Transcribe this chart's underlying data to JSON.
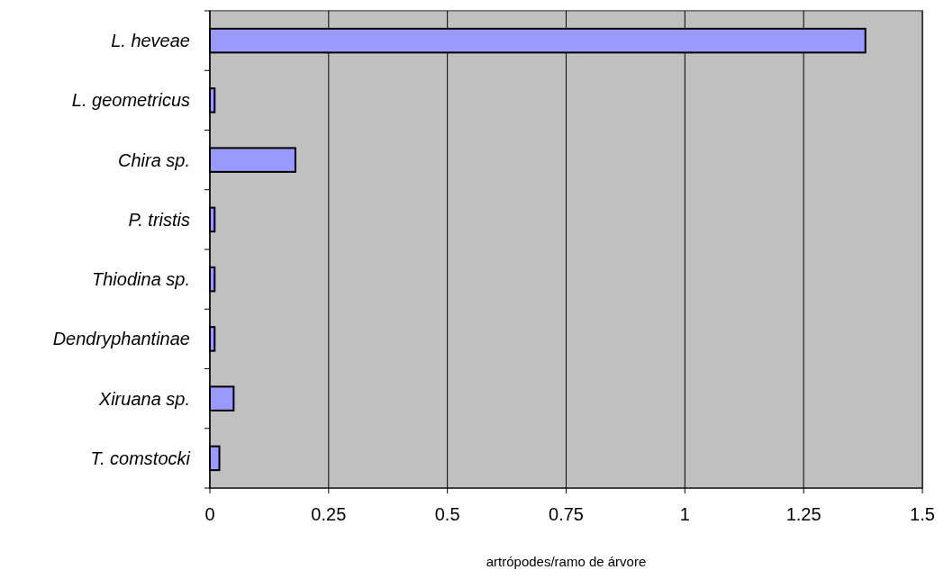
{
  "chart_data": {
    "type": "bar",
    "orientation": "horizontal",
    "xlabel": "artrópodes/ramo de árvore",
    "categories": [
      "L. heveae",
      "L. geometricus",
      "Chira sp.",
      "P. tristis",
      "Thiodina sp.",
      "Dendryphantinae",
      "Xiruana sp.",
      "T. comstocki"
    ],
    "values": [
      1.38,
      0.01,
      0.18,
      0.01,
      0.01,
      0.01,
      0.05,
      0.02
    ],
    "color": "#9999ff",
    "xlim": [
      0,
      1.5
    ],
    "xticks": [
      0,
      0.25,
      0.5,
      0.75,
      1,
      1.25,
      1.5
    ],
    "grid": "x"
  }
}
